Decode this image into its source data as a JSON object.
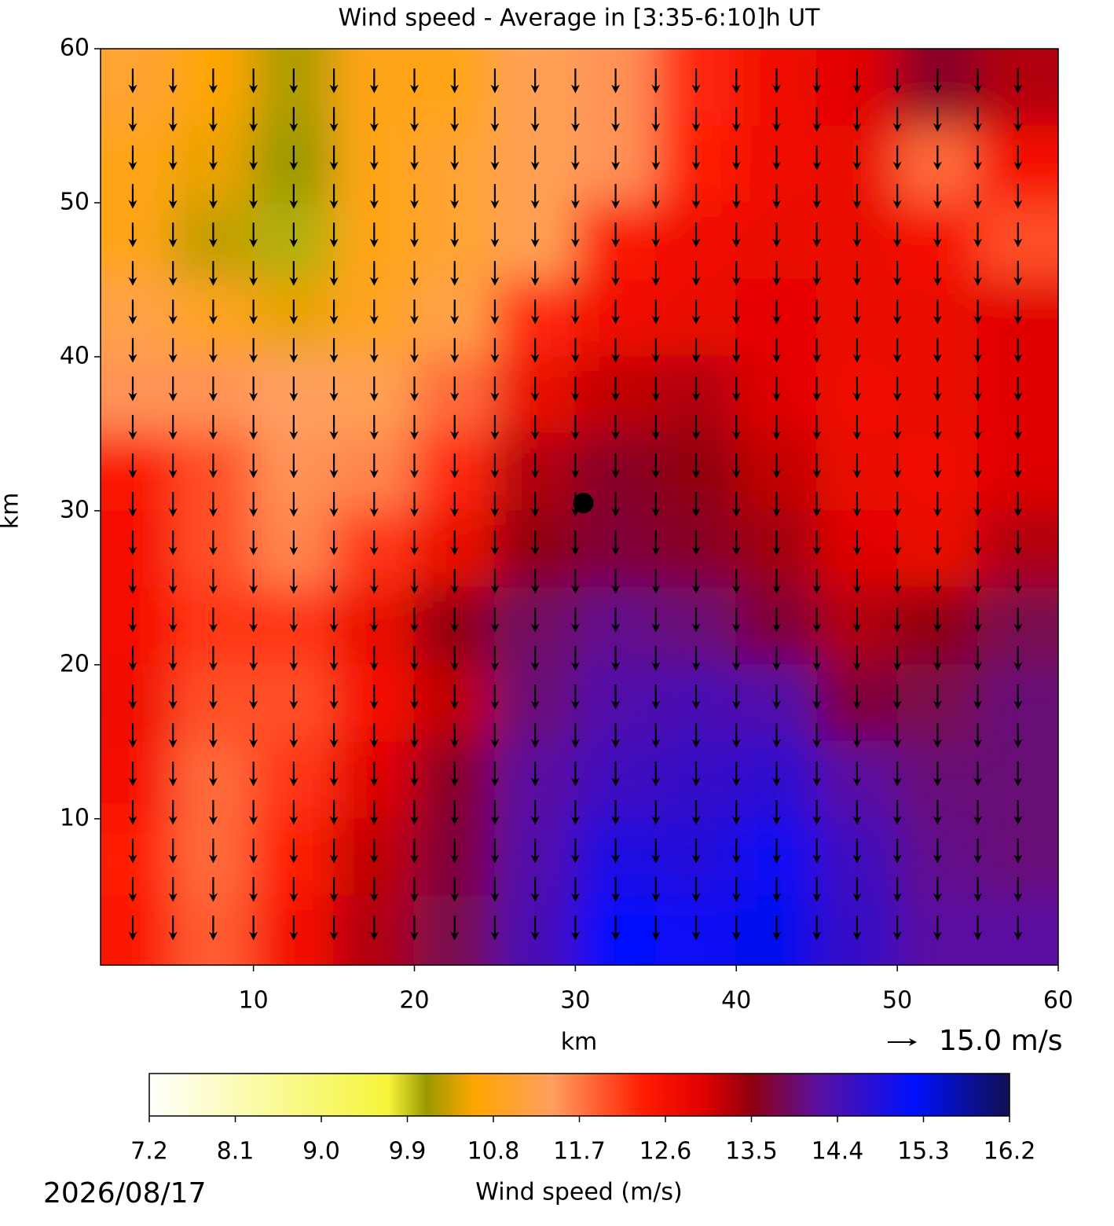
{
  "chart_data": {
    "type": "heatmap",
    "title": "Wind speed - Average in [3:35-6:10]h UT",
    "xlabel": "km",
    "ylabel": "km",
    "xlim": [
      0.5,
      60
    ],
    "ylim": [
      0.5,
      60
    ],
    "xticks": [
      10,
      20,
      30,
      40,
      50,
      60
    ],
    "yticks": [
      10,
      20,
      30,
      40,
      50,
      60
    ],
    "x": [
      2.5,
      7.5,
      12.5,
      17.5,
      22.5,
      27.5,
      32.5,
      37.5,
      42.5,
      47.5,
      52.5,
      57.5
    ],
    "y": [
      57.5,
      52.5,
      47.5,
      42.5,
      37.5,
      32.5,
      27.5,
      22.5,
      17.5,
      12.5,
      7.5,
      2.5
    ],
    "z": [
      [
        11,
        10.6,
        10.2,
        10.8,
        10.8,
        11.3,
        11.5,
        12.3,
        12.7,
        13,
        13.6,
        13.3
      ],
      [
        10.8,
        10.5,
        10.1,
        10.8,
        11,
        11.3,
        11.5,
        12.4,
        12.7,
        12.8,
        11.8,
        12.6
      ],
      [
        10.8,
        10.3,
        10,
        10.8,
        11,
        11.3,
        12.5,
        12.7,
        12.8,
        12.8,
        12.6,
        12
      ],
      [
        11.2,
        10.9,
        10.5,
        10.9,
        11.2,
        12.3,
        12.7,
        12.8,
        12.9,
        12.8,
        12.8,
        13
      ],
      [
        11.5,
        11.5,
        11.4,
        11.3,
        11.8,
        12.8,
        13.2,
        13.3,
        13,
        12.7,
        12.8,
        13
      ],
      [
        12.5,
        12,
        11.5,
        11.6,
        12.3,
        13.3,
        13.6,
        13.5,
        13.2,
        12.8,
        12.7,
        13
      ],
      [
        12.6,
        12,
        11.6,
        12.2,
        12.8,
        13.5,
        13.7,
        13.6,
        13.4,
        13,
        12.8,
        13.3
      ],
      [
        12.6,
        12.2,
        12.2,
        12.8,
        13.5,
        13.9,
        14.1,
        14,
        13.7,
        13.3,
        13.5,
        13.8
      ],
      [
        12.7,
        12,
        12,
        12.6,
        13.2,
        14,
        14.3,
        14.4,
        14.3,
        13.7,
        13.8,
        14
      ],
      [
        12.6,
        11.8,
        12.2,
        13,
        13.6,
        14.2,
        14.5,
        14.6,
        14.7,
        14.2,
        14,
        14
      ],
      [
        12.4,
        11.8,
        12.4,
        13.2,
        13.7,
        14.3,
        14.9,
        14.8,
        15.1,
        14.5,
        14.1,
        14
      ],
      [
        12.5,
        11.9,
        12.6,
        13.3,
        13.8,
        14.4,
        15.2,
        15.1,
        15.3,
        14.6,
        14.2,
        14.2
      ]
    ],
    "marker": {
      "x": 30.5,
      "y": 30.5
    },
    "arrow_key_label": "15.0 m/s",
    "colorbar": {
      "label": "Wind speed (m/s)",
      "lim": [
        7.2,
        16.2
      ],
      "ticks": [
        7.2,
        8.1,
        {
          "value": 9,
          "label": "9.0"
        },
        9.9,
        10.8,
        11.7,
        12.6,
        13.5,
        14.4,
        15.3,
        16.2
      ],
      "colorscale": [
        [
          7.2,
          "#ffffff"
        ],
        [
          9.7,
          "#f5f53a"
        ],
        [
          10.1,
          "#9a9a00"
        ],
        [
          10.6,
          "#ffa500"
        ],
        [
          11.4,
          "#ffa060"
        ],
        [
          12.4,
          "#ff1a00"
        ],
        [
          13.0,
          "#e00000"
        ],
        [
          13.5,
          "#900010"
        ],
        [
          14.2,
          "#5a10a0"
        ],
        [
          15.2,
          "#0010ff"
        ],
        [
          16.2,
          "#101050"
        ]
      ]
    },
    "date": "2026/08/17"
  }
}
